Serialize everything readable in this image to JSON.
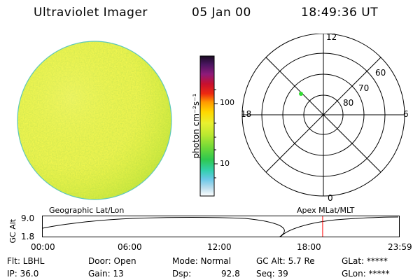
{
  "header": {
    "instrument": "Ultraviolet Imager",
    "date": "05 Jan 00",
    "time": "18:49:36 UT"
  },
  "colorbar": {
    "unit_label": "photon cm⁻²s⁻¹",
    "ticks": [
      "100",
      "10"
    ]
  },
  "polar_plot": {
    "mlt_labels": [
      "12",
      "18",
      "6",
      "0"
    ],
    "mlat_labels": [
      "60",
      "70",
      "80"
    ]
  },
  "timeline": {
    "left_title": "Geographic Lat/Lon",
    "right_title": "Apex  MLat/MLT",
    "y_axis_label": "GC Alt",
    "y_ticks": [
      "9.0",
      "1.8"
    ],
    "x_ticks": [
      "00:00",
      "06:00",
      "12:00",
      "18:00",
      "23:59"
    ],
    "current_time_hours": 18.83
  },
  "status": {
    "flt": "Flt: LBHL",
    "ip": "IP: 36.0",
    "door": "Door: Open",
    "gain": "Gain: 13",
    "mode": "Mode: Normal",
    "dsp": "Dsp:",
    "dsp_value": "92.8",
    "gc_alt": "GC Alt: 5.7 Re",
    "seq": "Seq: 39",
    "glat": "GLat: *****",
    "glon": "GLon: *****"
  },
  "colors": {
    "marker_line": "#ff0000",
    "point_marker": "#33dd33",
    "disk_base": "#d8ee2c"
  }
}
